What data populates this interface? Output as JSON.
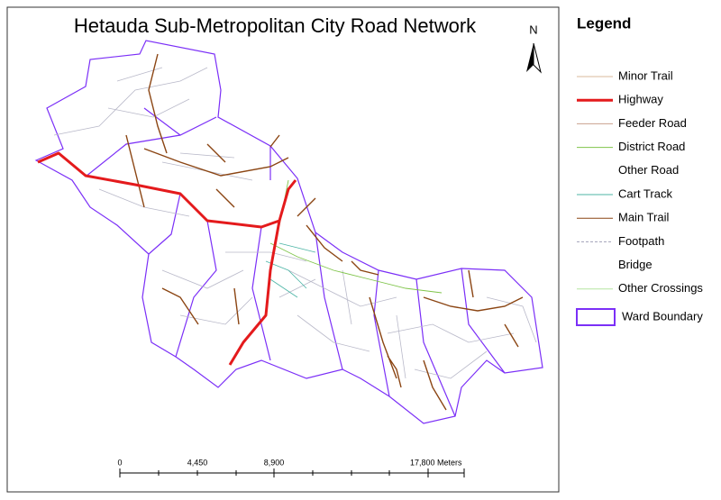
{
  "title": "Hetauda Sub-Metropolitan City Road Network",
  "north_label": "N",
  "legend": {
    "title": "Legend",
    "items": [
      {
        "label": "Minor Trail",
        "color": "#d9b99b",
        "style": "line"
      },
      {
        "label": "Highway",
        "color": "#e41a1c",
        "style": "thick"
      },
      {
        "label": "Feeder Road",
        "color": "#c9a08e",
        "style": "line"
      },
      {
        "label": "District Road",
        "color": "#7fc44a",
        "style": "line"
      },
      {
        "label": "Other Road",
        "color": "#ffffff",
        "style": "line"
      },
      {
        "label": "Cart Track",
        "color": "#4cb5a6",
        "style": "line"
      },
      {
        "label": "Main Trail",
        "color": "#8b4513",
        "style": "line"
      },
      {
        "label": "Footpath",
        "color": "#a0a0b8",
        "style": "dashed"
      },
      {
        "label": "Bridge",
        "color": "#ffffff",
        "style": "line"
      },
      {
        "label": "Other Crossings",
        "color": "#b5e6a0",
        "style": "line"
      },
      {
        "label": "Ward Boundary",
        "color": "#7b2ff7",
        "style": "box"
      }
    ]
  },
  "scale_bar": {
    "labels": [
      "0",
      "4,450",
      "8,900",
      "17,800 Meters"
    ]
  }
}
